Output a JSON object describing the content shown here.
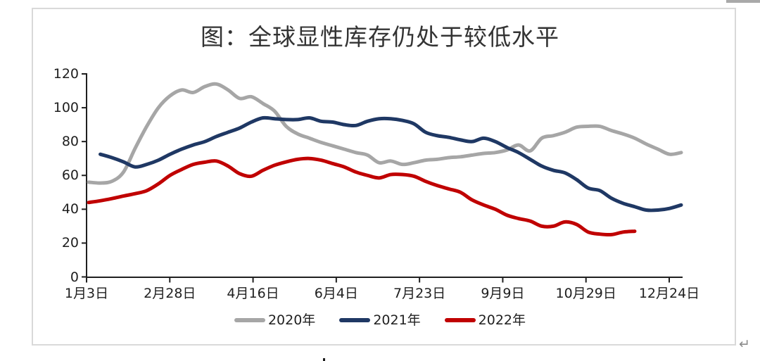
{
  "page": {
    "paragraph_mark": "↵"
  },
  "chart": {
    "title": "图：全球显性库存仍处于较低水平",
    "y_ticks": [
      "120",
      "100",
      "80",
      "60",
      "40",
      "20",
      "0"
    ],
    "x_ticks": [
      "1月3日",
      "2月28日",
      "4月16日",
      "6月4日",
      "7月23日",
      "9月9日",
      "10月29日",
      "12月24日"
    ],
    "legend": [
      "2020年",
      "2021年",
      "2022年"
    ]
  },
  "chart_data": {
    "type": "line",
    "title": "图：全球显性库存仍处于较低水平",
    "xlabel": "",
    "ylabel": "",
    "ylim": [
      0,
      120
    ],
    "y_tick_step": 20,
    "grid": false,
    "legend_position": "bottom",
    "x_tick_labels": [
      "1月3日",
      "2月28日",
      "4月16日",
      "6月4日",
      "7月23日",
      "9月9日",
      "10月29日",
      "12月24日"
    ],
    "n_points": 52,
    "series": [
      {
        "name": "2020年",
        "color": "#a6a6a6",
        "values": [
          56,
          55.5,
          56.5,
          62,
          76,
          89,
          100,
          107,
          110.5,
          109,
          112.5,
          114,
          110.5,
          105.5,
          106.5,
          102.5,
          98,
          89,
          84.5,
          82,
          79.5,
          77.5,
          75.5,
          73.5,
          72,
          67.5,
          68.5,
          66.5,
          67.5,
          69,
          69.5,
          70.5,
          71,
          72,
          73,
          73.5,
          75,
          78,
          74.5,
          82,
          83.5,
          85.5,
          88.5,
          89,
          89,
          86.5,
          84.5,
          82,
          78.5,
          75.5,
          72.5,
          73.5
        ]
      },
      {
        "name": "2021年",
        "color": "#1f3864",
        "values": [
          null,
          72.5,
          70.5,
          68,
          65,
          66.5,
          69,
          72.5,
          75.5,
          78,
          80,
          83,
          85.5,
          88,
          91.5,
          94,
          93.5,
          93,
          93,
          94,
          92,
          91.5,
          90,
          89.5,
          92,
          93.5,
          93.5,
          92.5,
          90.5,
          85.5,
          83.5,
          82.5,
          81,
          80,
          82,
          80,
          76.5,
          73.5,
          69.5,
          65.5,
          63,
          61.5,
          57.5,
          52.5,
          51,
          46.5,
          43.5,
          41.5,
          39.5,
          39.5,
          40.5,
          42.5
        ]
      },
      {
        "name": "2022年",
        "color": "#c00000",
        "values": [
          44,
          45,
          46.3,
          47.8,
          49.2,
          51,
          55,
          60,
          63.5,
          66.5,
          67.8,
          68.5,
          65.5,
          61,
          59.5,
          63,
          66,
          68,
          69.5,
          70,
          69,
          67,
          65,
          62,
          60,
          58.5,
          60.5,
          60.5,
          59.5,
          56.5,
          54,
          52,
          50,
          45.5,
          42.5,
          40,
          36.5,
          34.5,
          33,
          30,
          30,
          32.5,
          31,
          26.5,
          25.3,
          25,
          26.5,
          27
        ]
      }
    ]
  }
}
